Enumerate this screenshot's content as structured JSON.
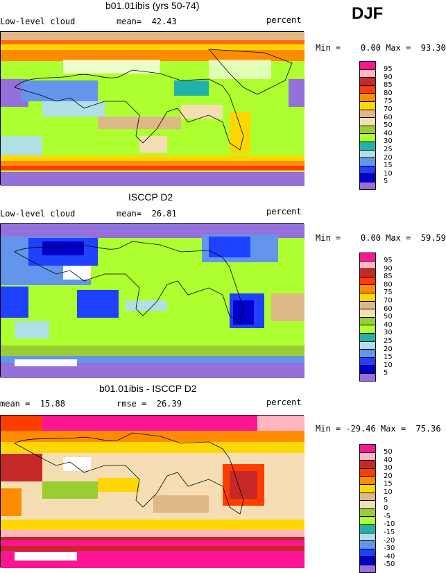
{
  "season_label": "DJF",
  "panels": [
    {
      "title": "b01.01ibis (yrs 50-74)",
      "left_label": "Low-level cloud",
      "stat_label": "mean=  42.43",
      "units": "percent",
      "minmax": "Min =    0.00 Max =  93.30",
      "legend": [
        "95",
        "90",
        "85",
        "80",
        "75",
        "70",
        "60",
        "50",
        "40",
        "30",
        "25",
        "20",
        "15",
        "10",
        "5"
      ],
      "colors": [
        "#ff1493",
        "#ffb6c1",
        "#c62828",
        "#ff3d00",
        "#ff8c00",
        "#ffd700",
        "#deb887",
        "#f5deb3",
        "#9acd32",
        "#adff2f",
        "#20b2aa",
        "#b0e0e6",
        "#6495ed",
        "#1e40ff",
        "#0000cd",
        "#9370db"
      ]
    },
    {
      "title": "ISCCP D2",
      "left_label": "Low-level cloud",
      "stat_label": "mean=  26.81",
      "units": "percent",
      "minmax": "Min =    0.00 Max =  59.59",
      "legend": [
        "95",
        "90",
        "85",
        "80",
        "75",
        "70",
        "60",
        "50",
        "40",
        "30",
        "25",
        "20",
        "15",
        "10",
        "5"
      ],
      "colors": [
        "#ff1493",
        "#ffb6c1",
        "#c62828",
        "#ff3d00",
        "#ff8c00",
        "#ffd700",
        "#deb887",
        "#f5deb3",
        "#9acd32",
        "#adff2f",
        "#20b2aa",
        "#b0e0e6",
        "#6495ed",
        "#1e40ff",
        "#0000cd",
        "#9370db"
      ]
    },
    {
      "title": "b01.01ibis - ISCCP D2",
      "left_label": "mean =  15.88",
      "stat_label": "rmse =  26.39",
      "units": "percent",
      "minmax": "Min = -29.46 Max =  75.36",
      "legend": [
        "50",
        "40",
        "30",
        "20",
        "15",
        "10",
        "5",
        "0",
        "-5",
        "-10",
        "-15",
        "-20",
        "-30",
        "-40",
        "-50"
      ],
      "colors": [
        "#ff1493",
        "#ffb6c1",
        "#c62828",
        "#ff3d00",
        "#ff8c00",
        "#ffd700",
        "#deb887",
        "#f5deb3",
        "#9acd32",
        "#adff2f",
        "#20b2aa",
        "#b0e0e6",
        "#6495ed",
        "#1e40ff",
        "#0000cd",
        "#9370db"
      ]
    }
  ]
}
